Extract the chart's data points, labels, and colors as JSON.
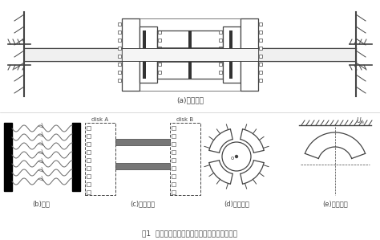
{
  "title": "(a)组合转子",
  "subtitle_b": "(b)拉杆",
  "subtitle_c": "(c)接触界面",
  "subtitle_d": "(d)径向轴承",
  "subtitle_e": "(e)推力轴承",
  "caption": "图1  一维周向盘式拉杆组合转子及其动力学模块",
  "disk_A_label": "disk A",
  "disk_B_label": "disk B",
  "bg_color": "#ffffff",
  "line_color": "#444444",
  "dark_color": "#111111",
  "gray_color": "#666666",
  "fig_width": 4.74,
  "fig_height": 2.99,
  "dpi": 100
}
